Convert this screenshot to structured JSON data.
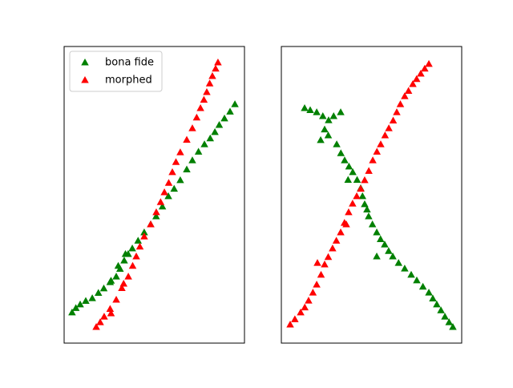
{
  "chart_data": [
    {
      "type": "scatter",
      "xlim": [
        0,
        100
      ],
      "ylim": [
        0,
        100
      ],
      "legend": "upper left",
      "series": [
        {
          "name": "bona fide",
          "color": "#008000",
          "x": [
            4.4,
            6.5,
            8.9,
            12,
            15.6,
            19,
            22,
            25.5,
            28.9,
            31,
            33.3,
            35.5,
            37.8,
            41,
            44.4,
            48,
            51,
            54.5,
            57.8,
            61,
            64.4,
            68,
            71.1,
            74.5,
            77.8,
            81,
            83.6,
            86,
            88.9,
            92,
            94.7,
            30,
            34,
            26
          ],
          "y": [
            10.3,
            11.8,
            13,
            14.2,
            15.1,
            16.9,
            18.4,
            20.5,
            22.4,
            25,
            27.8,
            30,
            31.9,
            34.5,
            37.3,
            40,
            42.7,
            46,
            49.5,
            52,
            54.9,
            58.5,
            61.6,
            64.5,
            67,
            69,
            71.1,
            73.5,
            75.7,
            78,
            80.5,
            26,
            30,
            21
          ]
        },
        {
          "name": "morphed",
          "color": "#ff0000",
          "x": [
            17.8,
            20,
            22.2,
            25.5,
            28.9,
            32,
            35.6,
            38,
            40,
            42,
            44.4,
            48,
            51.1,
            53.5,
            55.6,
            58,
            60,
            62,
            64.4,
            68,
            71.1,
            73.5,
            75.6,
            77.5,
            79.1,
            80.7,
            82.2,
            84,
            85.3,
            26,
            33
          ],
          "y": [
            5.4,
            7,
            8.9,
            11.5,
            14.6,
            18.5,
            22.4,
            26,
            29.2,
            32.5,
            35.9,
            40,
            44.1,
            47.5,
            50.8,
            54,
            57.6,
            61,
            64.3,
            68.5,
            72.4,
            76,
            79.2,
            82,
            84.6,
            87.5,
            90,
            92.5,
            94.6,
            10,
            20
          ]
        }
      ]
    },
    {
      "type": "scatter",
      "xlim": [
        0,
        100
      ],
      "ylim": [
        0,
        100
      ],
      "series": [
        {
          "color": "#008000",
          "x": [
            12.9,
            16,
            19.6,
            23,
            26.2,
            29,
            32.9,
            21.8,
            26,
            30.7,
            33,
            35.1,
            37.5,
            39.6,
            42,
            44,
            45,
            46.2,
            47.5,
            48.4,
            50.5,
            52.9,
            55,
            57.3,
            52.9,
            59.5,
            61.8,
            65,
            68.4,
            72,
            75.1,
            78.5,
            81.8,
            84,
            86.2,
            88.5,
            90.7,
            93,
            95.1,
            24,
            37
          ],
          "y": [
            79.2,
            78.5,
            77.8,
            76.5,
            75.1,
            76.5,
            77.8,
            68.4,
            70,
            67,
            64,
            61.6,
            59.5,
            57.6,
            55,
            52.2,
            49.5,
            46.8,
            45,
            42.7,
            40,
            37.3,
            35,
            33.2,
            29.2,
            31,
            29.2,
            27,
            25.1,
            23,
            21.1,
            19,
            17,
            15,
            13,
            11,
            8.9,
            7,
            5.4,
            72,
            55
          ]
        },
        {
          "color": "#ff0000",
          "x": [
            4.9,
            7.5,
            10.7,
            13,
            15.1,
            17.5,
            19.6,
            22,
            24,
            26,
            28.4,
            30.5,
            32.9,
            35,
            37.3,
            39.5,
            41.8,
            44,
            46.2,
            48.5,
            50.7,
            53,
            55.1,
            57.5,
            59.6,
            62,
            64,
            66,
            68.4,
            70.5,
            72.9,
            75,
            77.3,
            79.5,
            81.8,
            20,
            36
          ],
          "y": [
            6.2,
            8,
            10.3,
            12,
            14.3,
            17,
            19.7,
            23,
            26.5,
            29,
            31.9,
            34.5,
            37.3,
            40.5,
            44.1,
            47,
            49.5,
            52,
            54.9,
            58,
            61.6,
            64.5,
            67,
            70,
            72.4,
            75,
            77.8,
            80.5,
            83.2,
            85,
            87.3,
            89,
            90.8,
            92.5,
            94.1,
            27,
            40
          ]
        }
      ]
    }
  ]
}
